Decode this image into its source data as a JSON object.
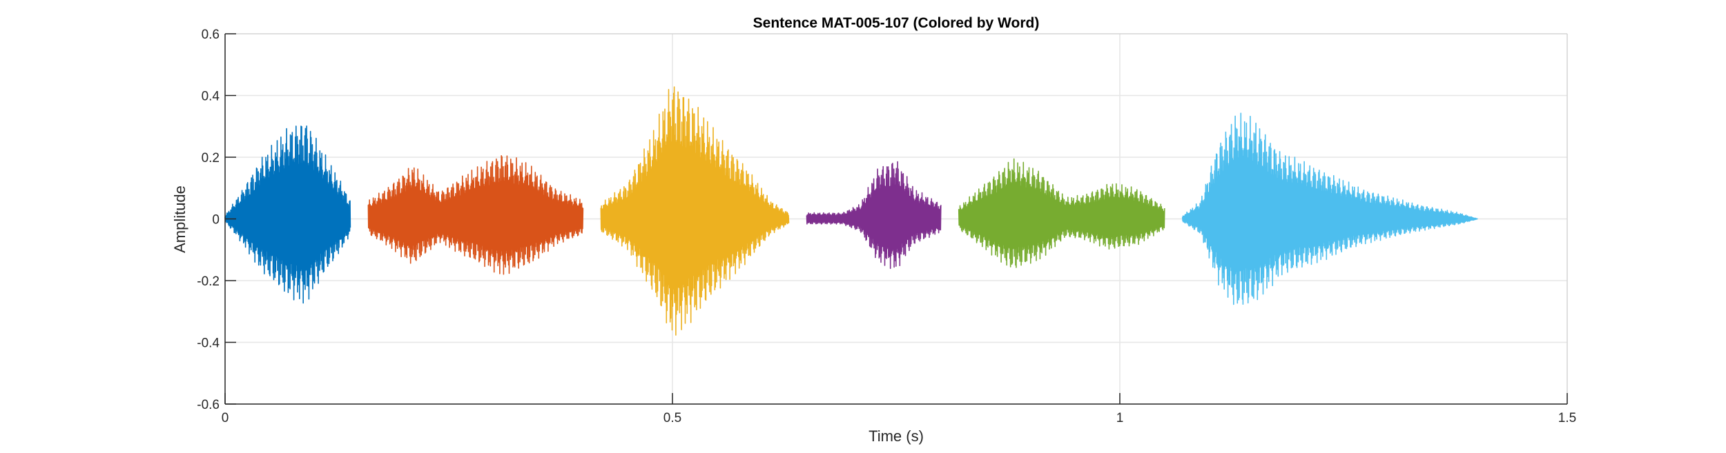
{
  "chart_data": {
    "type": "line",
    "title": "Sentence MAT-005-107 (Colored by Word)",
    "xlabel": "Time (s)",
    "ylabel": "Amplitude",
    "xlim": [
      0,
      1.5
    ],
    "ylim": [
      -0.6,
      0.6
    ],
    "xticks": [
      0,
      0.5,
      1,
      1.5
    ],
    "xtick_labels": [
      "0",
      "0.5",
      "1",
      "1.5"
    ],
    "yticks": [
      -0.6,
      -0.4,
      -0.2,
      0,
      0.2,
      0.4,
      0.6
    ],
    "ytick_labels": [
      "-0.6",
      "-0.4",
      "-0.2",
      "0",
      "0.2",
      "0.4",
      "0.6"
    ],
    "grid": true,
    "legend": "none",
    "series": [
      {
        "color": "#0072BD",
        "x_range": [
          0.0,
          0.14
        ],
        "envelope": [
          [
            0.0,
            0.01
          ],
          [
            0.02,
            0.1
          ],
          [
            0.04,
            0.2
          ],
          [
            0.07,
            0.3
          ],
          [
            0.09,
            0.33
          ],
          [
            0.11,
            0.22
          ],
          [
            0.13,
            0.12
          ],
          [
            0.14,
            0.06
          ]
        ]
      },
      {
        "color": "#D95319",
        "x_range": [
          0.16,
          0.4
        ],
        "envelope": [
          [
            0.16,
            0.06
          ],
          [
            0.18,
            0.1
          ],
          [
            0.21,
            0.18
          ],
          [
            0.24,
            0.09
          ],
          [
            0.27,
            0.15
          ],
          [
            0.31,
            0.22
          ],
          [
            0.34,
            0.18
          ],
          [
            0.37,
            0.1
          ],
          [
            0.4,
            0.06
          ]
        ]
      },
      {
        "color": "#EDB120",
        "x_range": [
          0.42,
          0.63
        ],
        "envelope": [
          [
            0.42,
            0.05
          ],
          [
            0.45,
            0.12
          ],
          [
            0.48,
            0.3
          ],
          [
            0.5,
            0.46
          ],
          [
            0.52,
            0.4
          ],
          [
            0.55,
            0.28
          ],
          [
            0.58,
            0.18
          ],
          [
            0.61,
            0.06
          ],
          [
            0.63,
            0.02
          ]
        ]
      },
      {
        "color": "#7E2F8E",
        "x_range": [
          0.65,
          0.8
        ],
        "envelope": [
          [
            0.65,
            0.02
          ],
          [
            0.69,
            0.02
          ],
          [
            0.71,
            0.05
          ],
          [
            0.73,
            0.17
          ],
          [
            0.75,
            0.2
          ],
          [
            0.77,
            0.1
          ],
          [
            0.8,
            0.05
          ]
        ]
      },
      {
        "color": "#77AC30",
        "x_range": [
          0.82,
          1.05
        ],
        "envelope": [
          [
            0.82,
            0.04
          ],
          [
            0.85,
            0.12
          ],
          [
            0.88,
            0.2
          ],
          [
            0.91,
            0.16
          ],
          [
            0.94,
            0.07
          ],
          [
            0.96,
            0.08
          ],
          [
            0.99,
            0.12
          ],
          [
            1.02,
            0.1
          ],
          [
            1.05,
            0.04
          ]
        ]
      },
      {
        "color": "#4DBEEE",
        "x_range": [
          1.07,
          1.4
        ],
        "envelope": [
          [
            1.07,
            0.01
          ],
          [
            1.09,
            0.06
          ],
          [
            1.11,
            0.25
          ],
          [
            1.13,
            0.35
          ],
          [
            1.15,
            0.33
          ],
          [
            1.18,
            0.22
          ],
          [
            1.22,
            0.17
          ],
          [
            1.27,
            0.1
          ],
          [
            1.33,
            0.05
          ],
          [
            1.38,
            0.02
          ],
          [
            1.4,
            0.0
          ]
        ]
      }
    ]
  }
}
